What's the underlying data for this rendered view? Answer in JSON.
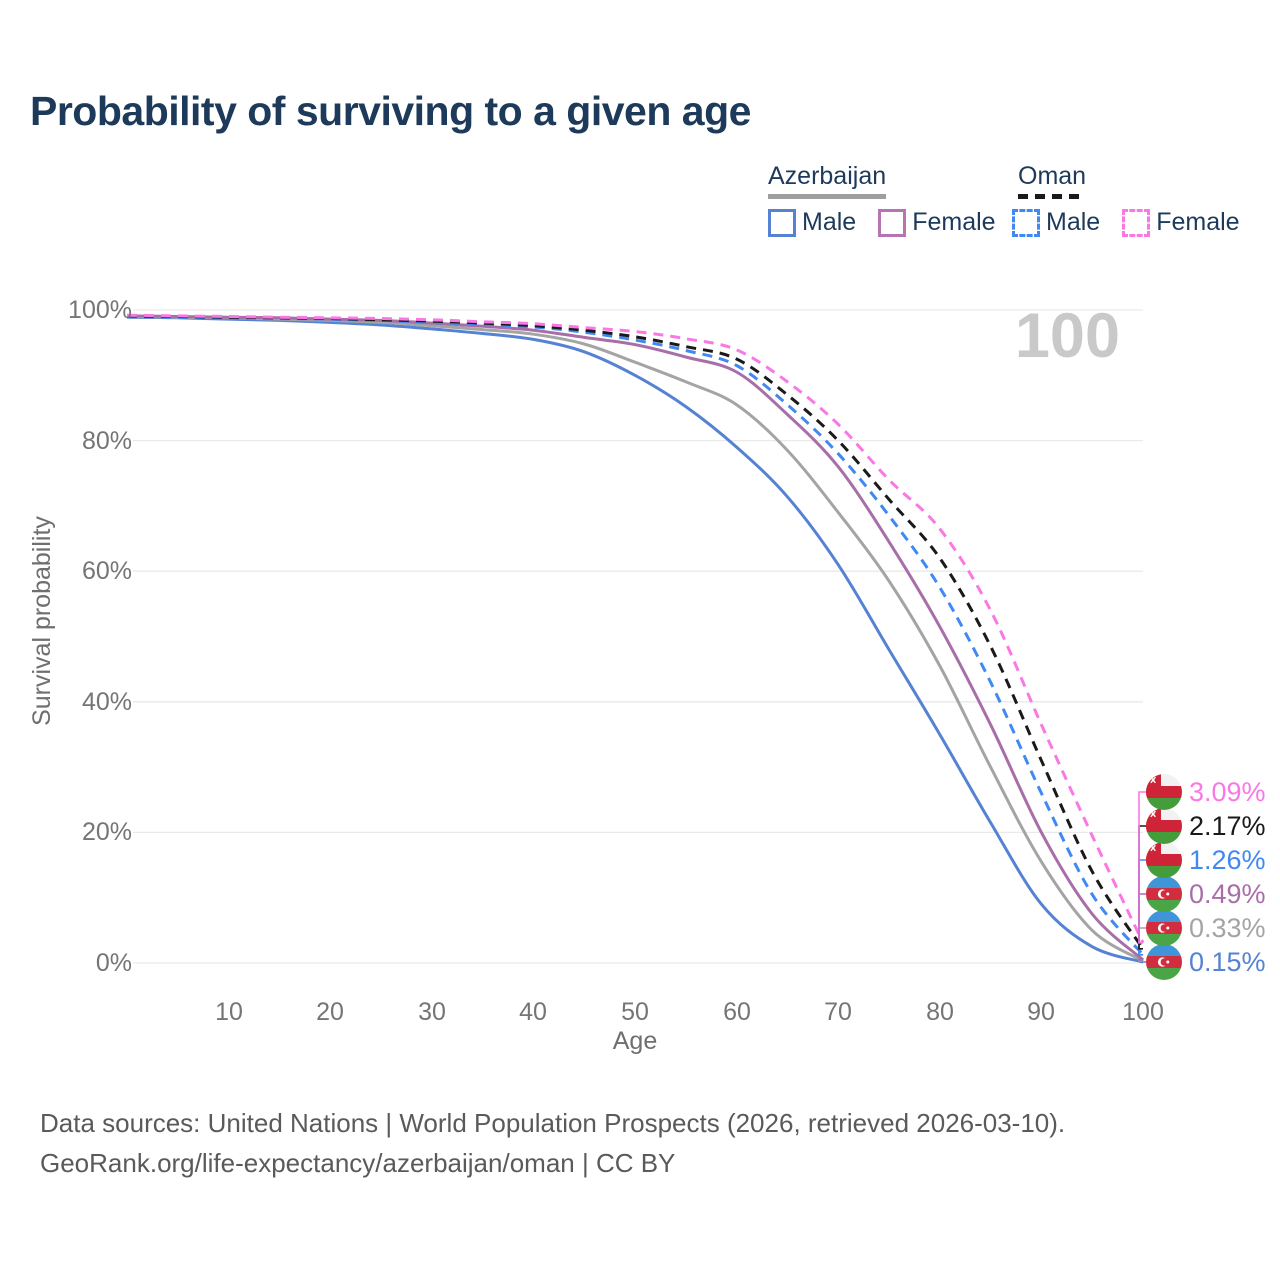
{
  "title": "Probability of surviving to a given age",
  "watermark": "100",
  "legend": {
    "groups": [
      {
        "name": "Azerbaijan",
        "underline_style": "solid",
        "underline_color": "#9e9e9e",
        "items": [
          {
            "label": "Male",
            "color": "#5582d2",
            "dashed": false
          },
          {
            "label": "Female",
            "color": "#b873b2",
            "dashed": false
          }
        ]
      },
      {
        "name": "Oman",
        "underline_style": "dashed",
        "underline_color": "#1a1a1a",
        "items": [
          {
            "label": "Male",
            "color": "#4189f2",
            "dashed": true
          },
          {
            "label": "Female",
            "color": "#fa78e6",
            "dashed": true
          }
        ]
      }
    ]
  },
  "chart_data": {
    "type": "line",
    "title": "Probability of surviving to a given age",
    "xlabel": "Age",
    "ylabel": "Survival probability",
    "xlim": [
      0,
      100
    ],
    "ylim": [
      0,
      100
    ],
    "grid": true,
    "xticks": [
      10,
      20,
      30,
      40,
      50,
      60,
      70,
      80,
      90,
      100
    ],
    "yticks": [
      {
        "value": 0,
        "label": "0%"
      },
      {
        "value": 20,
        "label": "20%"
      },
      {
        "value": 40,
        "label": "40%"
      },
      {
        "value": 60,
        "label": "60%"
      },
      {
        "value": 80,
        "label": "80%"
      },
      {
        "value": 100,
        "label": "100%"
      }
    ],
    "x": [
      0,
      5,
      10,
      15,
      20,
      25,
      30,
      35,
      40,
      45,
      50,
      55,
      60,
      65,
      70,
      75,
      80,
      85,
      90,
      95,
      100
    ],
    "series": [
      {
        "name": "Azerbaijan Male",
        "flag": "azerbaijan",
        "color": "#5582d2",
        "dashed": false,
        "end_label": "0.15%",
        "values": [
          98.9,
          98.8,
          98.6,
          98.4,
          98.1,
          97.7,
          97.1,
          96.4,
          95.5,
          93.6,
          90.0,
          85.2,
          79.0,
          71.4,
          61.0,
          48.0,
          35.0,
          21.5,
          9.0,
          2.5,
          0.15
        ]
      },
      {
        "name": "Azerbaijan Both sexes",
        "flag": "azerbaijan",
        "color": "#a4a4a4",
        "dashed": false,
        "end_label": "0.33%",
        "values": [
          99.0,
          98.9,
          98.8,
          98.6,
          98.4,
          98.1,
          97.6,
          97.0,
          96.3,
          94.8,
          92.0,
          89.0,
          85.5,
          78.5,
          69.0,
          58.5,
          45.5,
          30.0,
          15.5,
          5.0,
          0.33
        ]
      },
      {
        "name": "Azerbaijan Female",
        "flag": "azerbaijan",
        "color": "#a86ea8",
        "dashed": false,
        "end_label": "0.49%",
        "values": [
          99.1,
          99.0,
          98.9,
          98.8,
          98.6,
          98.4,
          98.0,
          97.5,
          96.9,
          95.8,
          94.7,
          92.8,
          90.5,
          84.0,
          76.0,
          64.5,
          51.5,
          36.5,
          20.0,
          7.5,
          0.49
        ]
      },
      {
        "name": "Oman Male",
        "flag": "oman",
        "color": "#4189f2",
        "dashed": true,
        "end_label": "1.26%",
        "values": [
          99.0,
          98.9,
          98.8,
          98.7,
          98.6,
          98.4,
          98.1,
          97.8,
          97.4,
          96.6,
          95.4,
          93.8,
          91.5,
          85.5,
          78.0,
          68.5,
          57.5,
          43.0,
          26.0,
          10.5,
          1.26
        ]
      },
      {
        "name": "Oman Both sexes",
        "flag": "oman",
        "color": "#1a1a1a",
        "dashed": true,
        "end_label": "2.17%",
        "values": [
          99.1,
          99.0,
          98.9,
          98.8,
          98.7,
          98.5,
          98.3,
          98.0,
          97.6,
          96.9,
          95.9,
          94.4,
          92.5,
          87.0,
          80.0,
          71.0,
          62.0,
          48.5,
          31.0,
          14.0,
          2.17
        ]
      },
      {
        "name": "Oman Female",
        "flag": "oman",
        "color": "#fa78e6",
        "dashed": true,
        "end_label": "3.09%",
        "values": [
          99.2,
          99.1,
          99.0,
          98.9,
          98.8,
          98.7,
          98.5,
          98.2,
          97.9,
          97.3,
          96.7,
          95.6,
          93.9,
          89.0,
          82.5,
          74.0,
          66.5,
          54.0,
          36.5,
          19.5,
          3.09
        ]
      }
    ]
  },
  "footer": {
    "line1": "Data sources: United Nations | World Population Prospects (2026, retrieved 2026-03-10).",
    "line2": "GeoRank.org/life-expectancy/azerbaijan/oman | CC BY"
  },
  "colors": {
    "title_text": "#1d3a5a",
    "axis_text": "#757575",
    "gridline": "#eaeaea",
    "watermark": "#c9c9c9",
    "footer_text": "#5a5a5a"
  }
}
